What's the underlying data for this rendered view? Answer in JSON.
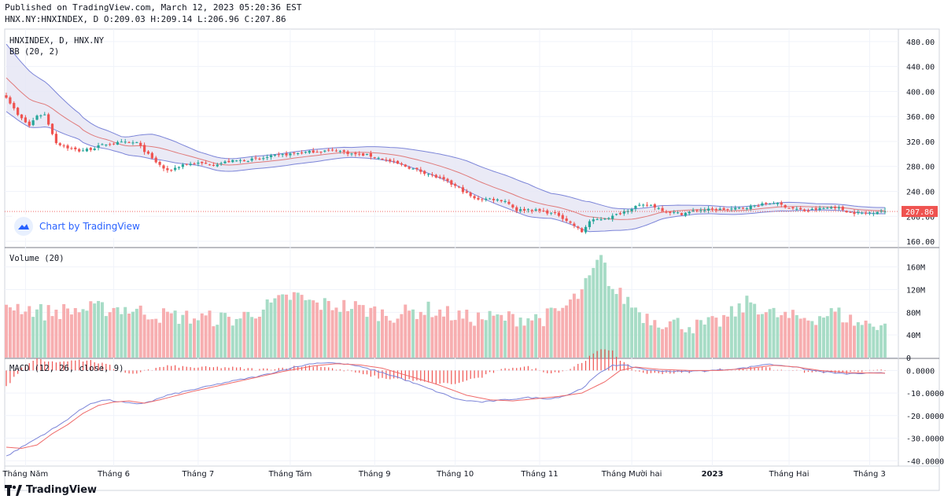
{
  "header": {
    "published": "Published on TradingView.com, March 12, 2023 05:20:36 EST",
    "ohlc_line": "HNX.NY:HNXINDEX, D O:209.03 H:209.14 L:206.96 C:207.86"
  },
  "main_pane": {
    "symbol_label": "HNXINDEX, D, HNX.NY",
    "indicator_label": "BB (20, 2)",
    "last_price_label": "207.86",
    "last_price": 207.86,
    "ylim": [
      150,
      500
    ],
    "y_ticks": [
      "160.00",
      "200.00",
      "240.00",
      "280.00",
      "320.00",
      "360.00",
      "400.00",
      "440.00",
      "480.00"
    ],
    "y_tick_values": [
      160,
      200,
      240,
      280,
      320,
      360,
      400,
      440,
      480
    ]
  },
  "volume_pane": {
    "label": "Volume (20)",
    "ylim": [
      0,
      190
    ],
    "y_ticks": [
      "0",
      "40M",
      "80M",
      "120M",
      "160M"
    ],
    "y_tick_values": [
      0,
      40,
      80,
      120,
      160
    ]
  },
  "macd_pane": {
    "label": "MACD (12, 26, close, 9)",
    "ylim": [
      -42,
      5
    ],
    "y_ticks": [
      "0.0000",
      "-10.0000",
      "-20.0000",
      "-30.0000",
      "-40.0000"
    ],
    "y_tick_values": [
      0,
      -10,
      -20,
      -30,
      -40
    ]
  },
  "x_axis": {
    "labels": [
      "Tháng Năm",
      "Tháng 6",
      "Tháng 7",
      "Tháng Tám",
      "Tháng 9",
      "Tháng 10",
      "Tháng 11",
      "Tháng Mười hai",
      "2023",
      "Tháng Hai",
      "Tháng 3"
    ],
    "positions_day": [
      5,
      28,
      50,
      74,
      96,
      117,
      139,
      163,
      184,
      204,
      225
    ],
    "bold_index": 8
  },
  "badge": {
    "label": "Chart by TradingView"
  },
  "footer": {
    "logo_text": "TradingView"
  },
  "colors": {
    "up": "#26a69a",
    "down": "#ef5350",
    "vol_up": "#a7dcc6",
    "vol_down": "#f7aeb0",
    "bb_fill": "#e6e6f5",
    "bb_band": "#7b84d8",
    "bb_basis": "#e07a7a",
    "macd_line": "#7b84d8",
    "signal_line": "#ef6a6a",
    "hist": "#ef5350",
    "grid": "#f0f3fa"
  },
  "chart_data": {
    "type": "candlestick",
    "keyframes_close": [
      [
        0,
        392
      ],
      [
        3,
        362
      ],
      [
        6,
        345
      ],
      [
        8,
        362
      ],
      [
        10,
        363
      ],
      [
        13,
        318
      ],
      [
        16,
        310
      ],
      [
        19,
        305
      ],
      [
        22,
        308
      ],
      [
        26,
        316
      ],
      [
        30,
        318
      ],
      [
        34,
        318
      ],
      [
        38,
        292
      ],
      [
        42,
        272
      ],
      [
        46,
        283
      ],
      [
        50,
        285
      ],
      [
        54,
        283
      ],
      [
        58,
        288
      ],
      [
        62,
        290
      ],
      [
        66,
        292
      ],
      [
        70,
        297
      ],
      [
        74,
        300
      ],
      [
        80,
        304
      ],
      [
        86,
        306
      ],
      [
        90,
        300
      ],
      [
        94,
        298
      ],
      [
        98,
        292
      ],
      [
        102,
        284
      ],
      [
        106,
        276
      ],
      [
        110,
        268
      ],
      [
        114,
        258
      ],
      [
        118,
        245
      ],
      [
        122,
        228
      ],
      [
        126,
        228
      ],
      [
        130,
        225
      ],
      [
        133,
        210
      ],
      [
        136,
        211
      ],
      [
        140,
        208
      ],
      [
        144,
        202
      ],
      [
        148,
        185
      ],
      [
        150,
        175
      ],
      [
        152,
        192
      ],
      [
        155,
        196
      ],
      [
        158,
        200
      ],
      [
        161,
        208
      ],
      [
        164,
        216
      ],
      [
        168,
        218
      ],
      [
        172,
        208
      ],
      [
        176,
        204
      ],
      [
        180,
        210
      ],
      [
        185,
        211
      ],
      [
        190,
        212
      ],
      [
        196,
        218
      ],
      [
        200,
        222
      ],
      [
        204,
        214
      ],
      [
        208,
        209
      ],
      [
        212,
        212
      ],
      [
        216,
        215
      ],
      [
        220,
        206
      ],
      [
        224,
        205
      ],
      [
        228,
        209
      ]
    ],
    "keyframes_volume": [
      [
        0,
        95
      ],
      [
        10,
        80
      ],
      [
        20,
        85
      ],
      [
        30,
        88
      ],
      [
        40,
        75
      ],
      [
        50,
        70
      ],
      [
        60,
        68
      ],
      [
        70,
        95
      ],
      [
        75,
        110
      ],
      [
        80,
        95
      ],
      [
        90,
        90
      ],
      [
        100,
        75
      ],
      [
        110,
        85
      ],
      [
        120,
        70
      ],
      [
        130,
        70
      ],
      [
        140,
        70
      ],
      [
        145,
        85
      ],
      [
        150,
        115
      ],
      [
        155,
        175
      ],
      [
        158,
        120
      ],
      [
        162,
        100
      ],
      [
        166,
        75
      ],
      [
        170,
        65
      ],
      [
        175,
        60
      ],
      [
        180,
        55
      ],
      [
        185,
        60
      ],
      [
        190,
        80
      ],
      [
        194,
        100
      ],
      [
        198,
        80
      ],
      [
        204,
        70
      ],
      [
        210,
        70
      ],
      [
        216,
        80
      ],
      [
        222,
        60
      ],
      [
        228,
        60
      ]
    ],
    "keyframes_macd": [
      [
        0,
        -38
      ],
      [
        3,
        -35
      ],
      [
        6,
        -32
      ],
      [
        8,
        -30
      ],
      [
        10,
        -28
      ],
      [
        14,
        -24
      ],
      [
        18,
        -19
      ],
      [
        22,
        -14.5
      ],
      [
        26,
        -13
      ],
      [
        30,
        -14
      ],
      [
        34,
        -15
      ],
      [
        38,
        -13.5
      ],
      [
        42,
        -11
      ],
      [
        50,
        -8
      ],
      [
        58,
        -5
      ],
      [
        66,
        -2.5
      ],
      [
        74,
        1
      ],
      [
        80,
        3.2
      ],
      [
        84,
        3.5
      ],
      [
        90,
        2.5
      ],
      [
        96,
        0
      ],
      [
        102,
        -3
      ],
      [
        110,
        -8
      ],
      [
        118,
        -13
      ],
      [
        124,
        -14
      ],
      [
        130,
        -13
      ],
      [
        136,
        -12
      ],
      [
        142,
        -12.5
      ],
      [
        146,
        -11
      ],
      [
        150,
        -8
      ],
      [
        154,
        -2
      ],
      [
        158,
        2.5
      ],
      [
        162,
        2
      ],
      [
        168,
        0
      ],
      [
        176,
        -0.5
      ],
      [
        184,
        0
      ],
      [
        192,
        1
      ],
      [
        198,
        2.8
      ],
      [
        204,
        2
      ],
      [
        210,
        0
      ],
      [
        218,
        -1.5
      ],
      [
        228,
        -1.2
      ]
    ],
    "keyframes_signal": [
      [
        0,
        -34
      ],
      [
        4,
        -34.5
      ],
      [
        8,
        -33
      ],
      [
        12,
        -28
      ],
      [
        16,
        -24
      ],
      [
        20,
        -19
      ],
      [
        24,
        -15.5
      ],
      [
        28,
        -14
      ],
      [
        32,
        -13.5
      ],
      [
        36,
        -14.5
      ],
      [
        40,
        -13
      ],
      [
        48,
        -9.5
      ],
      [
        56,
        -6.5
      ],
      [
        64,
        -3.5
      ],
      [
        72,
        -0.5
      ],
      [
        80,
        2
      ],
      [
        86,
        3
      ],
      [
        92,
        2.5
      ],
      [
        98,
        1
      ],
      [
        104,
        -2
      ],
      [
        112,
        -6
      ],
      [
        120,
        -11
      ],
      [
        126,
        -13
      ],
      [
        132,
        -13.5
      ],
      [
        138,
        -12.5
      ],
      [
        144,
        -11.5
      ],
      [
        150,
        -10
      ],
      [
        156,
        -5
      ],
      [
        160,
        0
      ],
      [
        164,
        1.5
      ],
      [
        170,
        0.5
      ],
      [
        178,
        0
      ],
      [
        186,
        0
      ],
      [
        194,
        1
      ],
      [
        200,
        2.3
      ],
      [
        206,
        1.5
      ],
      [
        212,
        0
      ],
      [
        220,
        -1
      ],
      [
        228,
        -1.2
      ]
    ],
    "bb_half_width": [
      [
        0,
        54
      ],
      [
        6,
        45
      ],
      [
        12,
        32
      ],
      [
        18,
        22
      ],
      [
        24,
        16
      ],
      [
        30,
        13
      ],
      [
        38,
        20
      ],
      [
        44,
        17
      ],
      [
        50,
        11
      ],
      [
        60,
        10
      ],
      [
        70,
        10
      ],
      [
        80,
        10
      ],
      [
        90,
        8
      ],
      [
        100,
        11
      ],
      [
        110,
        17
      ],
      [
        120,
        24
      ],
      [
        130,
        26
      ],
      [
        136,
        26
      ],
      [
        142,
        20
      ],
      [
        148,
        22
      ],
      [
        152,
        24
      ],
      [
        158,
        18
      ],
      [
        164,
        16
      ],
      [
        172,
        10
      ],
      [
        180,
        7
      ],
      [
        188,
        6
      ],
      [
        196,
        6
      ],
      [
        204,
        7
      ],
      [
        212,
        5
      ],
      [
        220,
        5
      ],
      [
        228,
        5
      ]
    ],
    "n_bars": 230
  }
}
